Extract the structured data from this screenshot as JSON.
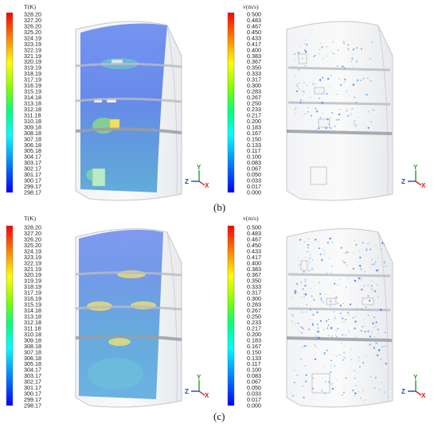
{
  "figure": {
    "captions": [
      "(b)",
      "(c)"
    ],
    "legend_temperature": {
      "title": "T(K)",
      "ticks": [
        "328.20",
        "327.20",
        "326.20",
        "325.20",
        "324.19",
        "323.19",
        "322.19",
        "321.19",
        "320.19",
        "319.19",
        "318.19",
        "317.19",
        "316.19",
        "315.19",
        "314.18",
        "313.18",
        "312.18",
        "311.18",
        "310.18",
        "309.18",
        "308.18",
        "307.18",
        "306.18",
        "305.18",
        "304.17",
        "303.17",
        "302.17",
        "301.17",
        "300.17",
        "299.17",
        "298.17"
      ]
    },
    "legend_velocity": {
      "title": "v(m/s)",
      "ticks": [
        "0.500",
        "0.483",
        "0.467",
        "0.450",
        "0.433",
        "0.417",
        "0.400",
        "0.383",
        "0.367",
        "0.350",
        "0.333",
        "0.317",
        "0.300",
        "0.283",
        "0.267",
        "0.250",
        "0.233",
        "0.217",
        "0.200",
        "0.183",
        "0.167",
        "0.150",
        "0.133",
        "0.117",
        "0.100",
        "0.083",
        "0.067",
        "0.050",
        "0.033",
        "0.017",
        "0.000"
      ]
    },
    "axes_triad": {
      "y": "Y",
      "z": "Z",
      "x": "X",
      "colors": {
        "x": "#e02020",
        "y": "#20a020",
        "z": "#2040e0"
      }
    },
    "colormap": [
      "#ff0000",
      "#ff8000",
      "#ffff00",
      "#80ff00",
      "#00ff80",
      "#00ffff",
      "#0080ff",
      "#0000ff"
    ]
  }
}
